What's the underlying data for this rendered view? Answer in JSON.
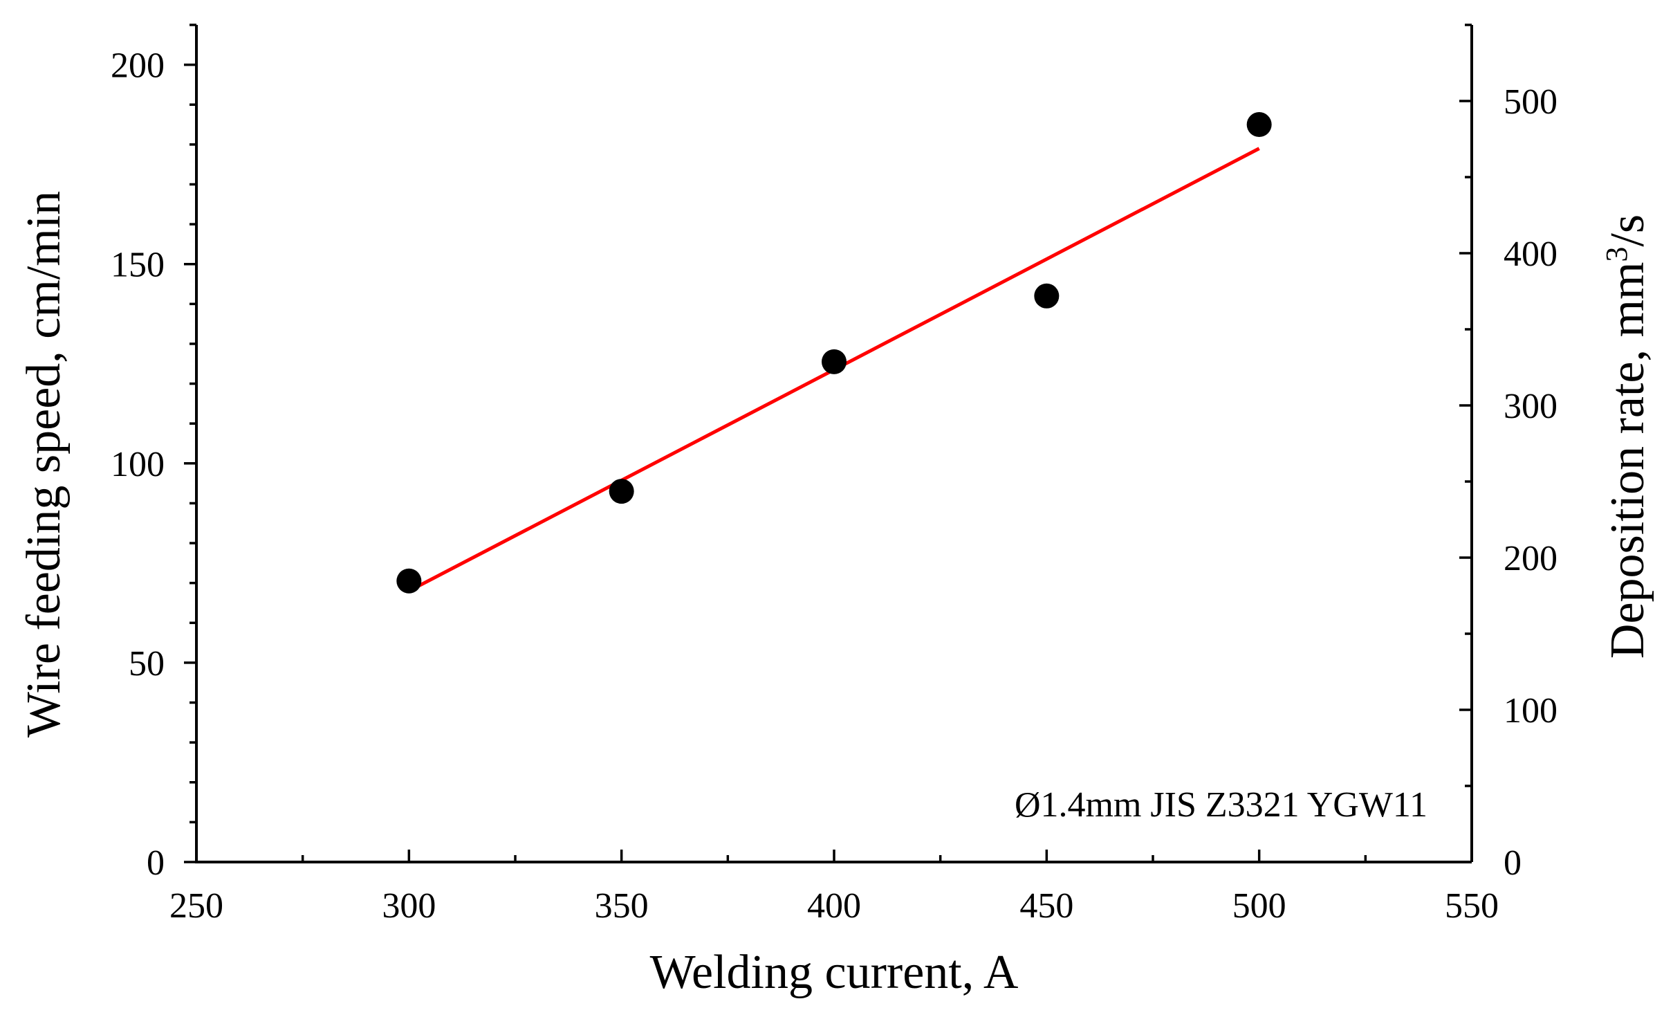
{
  "chart_data": {
    "type": "scatter",
    "title": "",
    "xlabel": "Welding current, A",
    "ylabel": "Wire feeding speed, cm/min",
    "y2label_main": "Deposition rate, mm",
    "y2label_sup": "3",
    "y2label_tail": "/s",
    "xlim": [
      250,
      550
    ],
    "ylim": [
      0,
      210
    ],
    "y2lim": [
      0,
      550
    ],
    "x_ticks": [
      250,
      300,
      350,
      400,
      450,
      500,
      550
    ],
    "x_minor_step": 25,
    "y_ticks": [
      0,
      50,
      100,
      150,
      200
    ],
    "y_minor_step": 10,
    "y2_ticks": [
      0,
      100,
      200,
      300,
      400,
      500
    ],
    "y2_minor_step": 50,
    "grid": false,
    "series": [
      {
        "kind": "points",
        "color": "#000000",
        "x": [
          300,
          350,
          400,
          450,
          500
        ],
        "y": [
          70.5,
          93,
          125.5,
          142,
          185
        ]
      },
      {
        "kind": "fit-line",
        "color": "#ff0000",
        "x": [
          300,
          500
        ],
        "y": [
          68,
          179
        ]
      }
    ],
    "annotation": "Ø1.4mm JIS Z3321 YGW11"
  }
}
